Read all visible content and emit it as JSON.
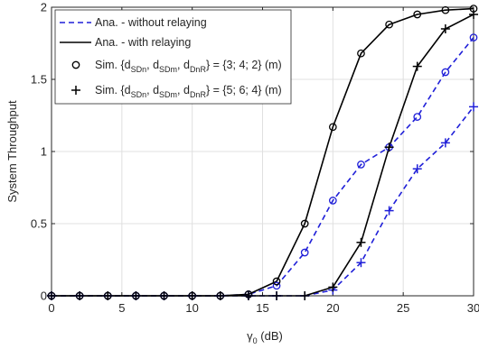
{
  "chart_data": {
    "type": "line",
    "xlabel": "γ0 (dB)",
    "xlabel_main": "γ",
    "xlabel_sub": "0",
    "xlabel_unit": " (dB)",
    "ylabel": "System Throughput",
    "xlim": [
      0,
      30
    ],
    "ylim": [
      0,
      2
    ],
    "xticks": [
      0,
      5,
      10,
      15,
      20,
      25,
      30
    ],
    "yticks": [
      0,
      0.5,
      1,
      1.5,
      2
    ],
    "grid": true,
    "legend_position": "top-left",
    "x": [
      0,
      2,
      4,
      6,
      8,
      10,
      12,
      14,
      16,
      18,
      20,
      22,
      24,
      26,
      28,
      30
    ],
    "series": [
      {
        "name": "Ana. - without relaying",
        "style": "dashed",
        "color": "#1f1fd8",
        "kind": "analytical",
        "case": "case1",
        "values": [
          0,
          0,
          0,
          0,
          0,
          0,
          0,
          0.01,
          0.07,
          0.3,
          0.66,
          0.91,
          1.03,
          1.24,
          1.55,
          1.79
        ]
      },
      {
        "name": "Ana. - without relaying",
        "style": "dashed",
        "color": "#1f1fd8",
        "kind": "analytical",
        "case": "case2",
        "values": [
          0,
          0,
          0,
          0,
          0,
          0,
          0,
          0,
          0,
          0,
          0.04,
          0.23,
          0.59,
          0.88,
          1.06,
          1.31
        ]
      },
      {
        "name": "Ana. - with relaying",
        "style": "solid",
        "color": "#000000",
        "kind": "analytical",
        "case": "case1",
        "values": [
          0,
          0,
          0,
          0,
          0,
          0,
          0,
          0.01,
          0.1,
          0.5,
          1.17,
          1.68,
          1.88,
          1.95,
          1.98,
          1.99
        ]
      },
      {
        "name": "Ana. - with relaying",
        "style": "solid",
        "color": "#000000",
        "kind": "analytical",
        "case": "case2",
        "values": [
          0,
          0,
          0,
          0,
          0,
          0,
          0,
          0,
          0,
          0,
          0.06,
          0.37,
          1.03,
          1.59,
          1.85,
          1.95
        ]
      },
      {
        "name": "Sim. {dSDn, dSDm, dDnR} = {3; 4; 2} (m)",
        "marker": "circle",
        "kind": "simulation",
        "groups": [
          {
            "color": "#1f1fd8",
            "values": [
              0,
              0,
              0,
              0,
              0,
              0,
              0,
              0.01,
              0.07,
              0.3,
              0.66,
              0.91,
              1.03,
              1.24,
              1.55,
              1.79
            ]
          },
          {
            "color": "#000000",
            "values": [
              0,
              0,
              0,
              0,
              0,
              0,
              0,
              0.01,
              0.1,
              0.5,
              1.17,
              1.68,
              1.88,
              1.95,
              1.98,
              1.99
            ]
          }
        ]
      },
      {
        "name": "Sim. {dSDn, dSDm, dDnR} = {5; 6; 4} (m)",
        "marker": "plus",
        "kind": "simulation",
        "groups": [
          {
            "color": "#1f1fd8",
            "values": [
              0,
              0,
              0,
              0,
              0,
              0,
              0,
              0,
              0,
              0,
              0.04,
              0.23,
              0.59,
              0.88,
              1.06,
              1.31
            ]
          },
          {
            "color": "#000000",
            "values": [
              0,
              0,
              0,
              0,
              0,
              0,
              0,
              0,
              0,
              0,
              0.06,
              0.37,
              1.03,
              1.59,
              1.85,
              1.95
            ]
          }
        ]
      }
    ]
  },
  "legend": {
    "item1": "Ana. - without relaying",
    "item2": "Ana. - with relaying",
    "sim_prefix": "Sim. {d",
    "sub_sdn": "SDn",
    "sub_sdm": "SDm",
    "sub_dnr": "DnR",
    "sep": ", d",
    "item3_values": "} = {3; 4; 2} (m)",
    "item4_values": "} = {5; 6; 4} (m)"
  }
}
